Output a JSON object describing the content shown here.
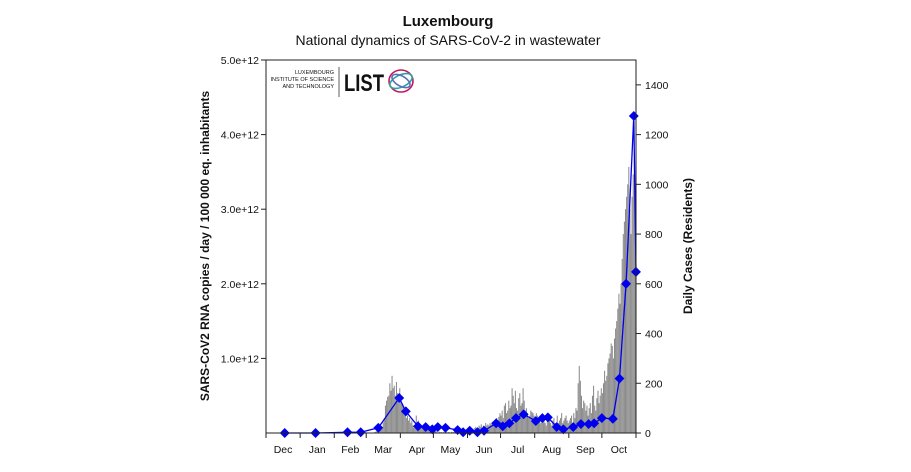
{
  "chart_data": {
    "type": "bar+line",
    "title": "Luxembourg",
    "subtitle": "National dynamics of SARS-CoV-2 in wastewater",
    "ylabel_left": "SARS-CoV2 RNA copies / day  / 100 000 eq. inhabitants",
    "ylabel_right": "Daily Cases (Residents)",
    "x_range": [
      "2019-12-01",
      "2020-11-01"
    ],
    "x_tick_labels": [
      "Dec",
      "Jan",
      "Feb",
      "Mar",
      "Apr",
      "May",
      "Jun",
      "Jul",
      "Aug",
      "Sep",
      "Oct"
    ],
    "ylim_left": [
      0,
      5000000000000.0
    ],
    "y_left_tick_labels": [
      "1.0e+12",
      "2.0e+12",
      "3.0e+12",
      "4.0e+12",
      "5.0e+12"
    ],
    "y_left_tick_values": [
      1000000000000.0,
      2000000000000.0,
      3000000000000.0,
      4000000000000.0,
      5000000000000.0
    ],
    "ylim_right": [
      0,
      1500
    ],
    "y_right_ticks": [
      0,
      200,
      400,
      600,
      800,
      1000,
      1200,
      1400
    ],
    "grid": false,
    "colors": {
      "wastewater": "#0000ee",
      "cases": "#8c8c8c"
    },
    "wastewater_series": {
      "axis": "left",
      "unit_scale": 1000000000000.0,
      "points": [
        [
          "2019-12-18",
          0.0
        ],
        [
          "2020-01-15",
          0.0
        ],
        [
          "2020-02-13",
          0.01
        ],
        [
          "2020-02-25",
          0.01
        ],
        [
          "2020-03-12",
          0.07
        ],
        [
          "2020-03-31",
          0.47
        ],
        [
          "2020-04-06",
          0.29
        ],
        [
          "2020-04-17",
          0.09
        ],
        [
          "2020-04-24",
          0.08
        ],
        [
          "2020-04-30",
          0.05
        ],
        [
          "2020-05-05",
          0.08
        ],
        [
          "2020-05-12",
          0.07
        ],
        [
          "2020-05-23",
          0.04
        ],
        [
          "2020-05-28",
          0.01
        ],
        [
          "2020-06-03",
          0.03
        ],
        [
          "2020-06-10",
          0.01
        ],
        [
          "2020-06-16",
          0.03
        ],
        [
          "2020-06-27",
          0.13
        ],
        [
          "2020-07-03",
          0.09
        ],
        [
          "2020-07-09",
          0.13
        ],
        [
          "2020-07-15",
          0.2
        ],
        [
          "2020-07-22",
          0.25
        ],
        [
          "2020-08-02",
          0.16
        ],
        [
          "2020-08-08",
          0.2
        ],
        [
          "2020-08-13",
          0.21
        ],
        [
          "2020-08-21",
          0.08
        ],
        [
          "2020-08-27",
          0.05
        ],
        [
          "2020-09-05",
          0.08
        ],
        [
          "2020-09-12",
          0.12
        ],
        [
          "2020-09-19",
          0.12
        ],
        [
          "2020-09-24",
          0.13
        ],
        [
          "2020-10-01",
          0.2
        ],
        [
          "2020-10-11",
          0.19
        ],
        [
          "2020-10-17",
          0.73
        ],
        [
          "2020-10-23",
          2.0
        ],
        [
          "2020-10-30",
          4.25
        ],
        [
          "2020-11-01",
          2.16
        ]
      ]
    },
    "daily_cases_series": {
      "axis": "right",
      "start": "2020-03-01",
      "values": [
        0,
        0,
        0,
        0,
        1,
        1,
        2,
        3,
        5,
        7,
        12,
        8,
        19,
        25,
        18,
        43,
        60,
        110,
        130,
        145,
        150,
        200,
        170,
        230,
        180,
        190,
        150,
        205,
        160,
        140,
        180,
        150,
        120,
        110,
        100,
        90,
        60,
        70,
        50,
        60,
        40,
        50,
        30,
        20,
        25,
        70,
        40,
        50,
        30,
        25,
        20,
        20,
        30,
        15,
        20,
        15,
        10,
        5,
        10,
        8,
        10,
        5,
        10,
        8,
        3,
        2,
        5,
        3,
        4,
        2,
        5,
        3,
        6,
        2,
        4,
        3,
        2,
        5,
        3,
        4,
        5,
        2,
        3,
        4,
        5,
        6,
        3,
        5,
        10,
        8,
        6,
        5,
        8,
        10,
        15,
        12,
        18,
        15,
        20,
        25,
        15,
        20,
        30,
        25,
        35,
        20,
        30,
        25,
        40,
        30,
        35,
        30,
        40,
        35,
        45,
        40,
        50,
        55,
        60,
        50,
        65,
        80,
        70,
        90,
        60,
        110,
        120,
        80,
        90,
        130,
        100,
        110,
        180,
        150,
        120,
        170,
        100,
        90,
        140,
        160,
        110,
        120,
        180,
        130,
        90,
        100,
        80,
        60,
        70,
        90,
        85,
        80,
        70,
        60,
        80,
        70,
        50,
        60,
        40,
        70,
        50,
        60,
        40,
        30,
        60,
        50,
        70,
        40,
        30,
        50,
        60,
        40,
        30,
        70,
        40,
        50,
        60,
        80,
        40,
        50,
        60,
        70,
        50,
        40,
        50,
        60,
        70,
        40,
        80,
        60,
        100,
        90,
        200,
        270,
        210,
        150,
        100,
        130,
        120,
        90,
        110,
        70,
        100,
        120,
        80,
        150,
        190,
        110,
        90,
        140,
        170,
        120,
        150,
        180,
        160,
        200,
        250,
        210,
        230,
        280,
        300,
        320,
        360,
        350,
        300,
        380,
        420,
        450,
        500,
        560,
        520,
        600,
        700,
        800,
        850,
        900,
        950,
        1000,
        1070,
        900,
        800,
        950,
        1040,
        1100,
        1000
      ]
    }
  },
  "logo": {
    "line1": "LUXEMBOURG",
    "line2": "INSTITUTE OF SCIENCE",
    "line3": "AND TECHNOLOGY",
    "mark": "LIST"
  }
}
